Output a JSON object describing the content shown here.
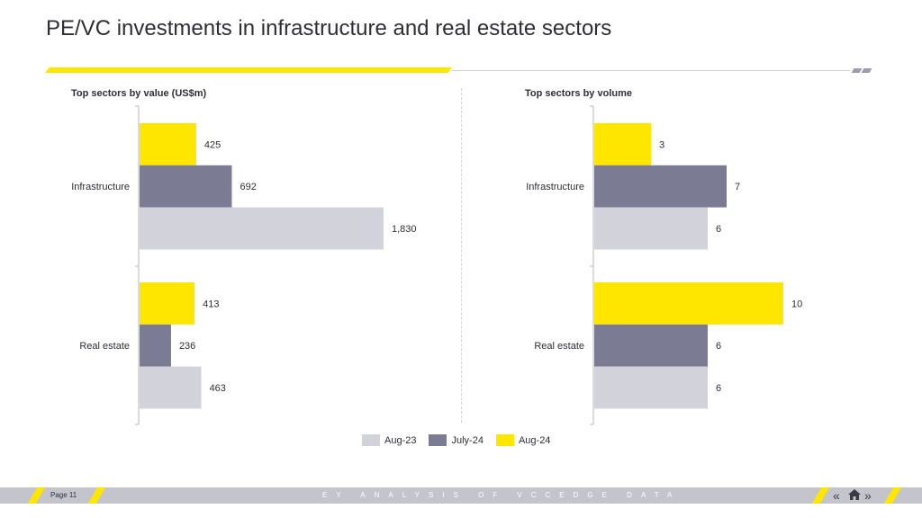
{
  "page": {
    "title": "PE/VC investments in infrastructure and real estate sectors",
    "footer_page": "Page 11",
    "footer_text": "EY ANALYSIS OF VCCEDGE DATA"
  },
  "colors": {
    "aug23": "#d2d2da",
    "july24": "#7b7b93",
    "aug24": "#ffe600",
    "accent": "#ffe600",
    "footer": "#c4c4cd"
  },
  "legend": [
    {
      "label": "Aug-23",
      "color": "#d2d2da"
    },
    {
      "label": "July-24",
      "color": "#7b7b93"
    },
    {
      "label": "Aug-24",
      "color": "#ffe600"
    }
  ],
  "nav": {
    "prev_icon": "double-chevron-left-icon",
    "home_icon": "home-icon",
    "next_icon": "double-chevron-right-icon"
  },
  "chart_data": [
    {
      "type": "bar",
      "orientation": "horizontal",
      "title": "Top sectors by value (US$m)",
      "categories": [
        "Infrastructure",
        "Real estate"
      ],
      "series": [
        {
          "name": "Aug-24",
          "values": [
            425,
            413
          ],
          "labels": [
            "425",
            "413"
          ]
        },
        {
          "name": "July-24",
          "values": [
            692,
            236
          ],
          "labels": [
            "692",
            "236"
          ]
        },
        {
          "name": "Aug-23",
          "values": [
            1830,
            463
          ],
          "labels": [
            "1,830",
            "463"
          ]
        }
      ],
      "xlim": [
        0,
        2000
      ],
      "grid": false,
      "legend": "bottom"
    },
    {
      "type": "bar",
      "orientation": "horizontal",
      "title": "Top sectors by volume",
      "categories": [
        "Infrastructure",
        "Real estate"
      ],
      "series": [
        {
          "name": "Aug-24",
          "values": [
            3,
            10
          ],
          "labels": [
            "3",
            "10"
          ]
        },
        {
          "name": "July-24",
          "values": [
            7,
            6
          ],
          "labels": [
            "7",
            "6"
          ]
        },
        {
          "name": "Aug-23",
          "values": [
            6,
            6
          ],
          "labels": [
            "6",
            "6"
          ]
        }
      ],
      "xlim": [
        0,
        10.8
      ],
      "grid": false,
      "legend": "bottom"
    }
  ]
}
